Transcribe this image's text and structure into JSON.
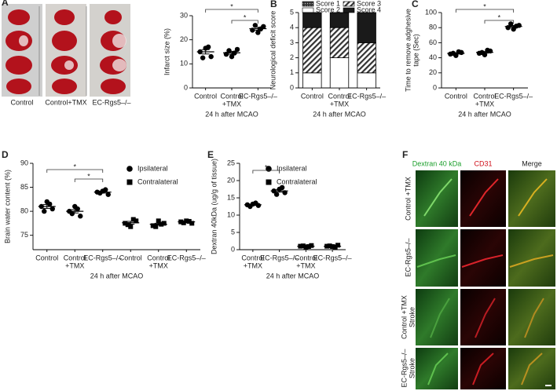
{
  "panel_labels": [
    "A",
    "B",
    "C",
    "D",
    "E",
    "F"
  ],
  "panel_a_images": {
    "captions": [
      "Control",
      "Control+TMX",
      "EC-Rgs5–/–"
    ]
  },
  "chart_data": [
    {
      "type": "dotplot",
      "ylabel": [
        "Infarct size (%)"
      ],
      "xlabel": "24 h after MCAO",
      "categories": [
        [
          "Control"
        ],
        [
          "Control",
          "+TMX"
        ],
        [
          "EC-Rgs5–/–"
        ]
      ],
      "ylim": [
        0,
        30
      ],
      "yticks": [
        0,
        10,
        20,
        30
      ],
      "series": [
        {
          "marker": "circle",
          "color": "#000000",
          "values": [
            [
              15,
              13,
              16.5,
              12.5,
              17
            ],
            [
              14,
              16,
              13,
              15.5,
              14.5
            ],
            [
              24,
              25.5,
              23,
              26,
              24.5
            ]
          ],
          "means": [
            15,
            14.6,
            24.6
          ],
          "errors": [
            0.9,
            0.6,
            0.6
          ]
        }
      ],
      "significance": [
        {
          "from": 0,
          "to": 2,
          "label": "*"
        },
        {
          "from": 1,
          "to": 2,
          "label": "*"
        }
      ]
    },
    {
      "type": "stacked_bar",
      "ylabel": [
        "Neurological deficit score"
      ],
      "xlabel": "24 h after MCAO",
      "categories": [
        [
          "Control"
        ],
        [
          "Control",
          "+TMX"
        ],
        [
          "EC-Rgs5–/–"
        ]
      ],
      "ylim": [
        0,
        5
      ],
      "yticks": [
        0,
        1,
        2,
        3,
        4,
        5
      ],
      "series": [
        {
          "name": "Score 1",
          "color": "#555555",
          "pattern": "dots",
          "values": [
            0,
            0,
            0
          ]
        },
        {
          "name": "Score 2",
          "color": "#ffffff",
          "values": [
            1,
            2,
            1
          ]
        },
        {
          "name": "Score 3",
          "color": "#444444",
          "pattern": "hatch",
          "values": [
            3,
            2,
            2
          ]
        },
        {
          "name": "Score 4",
          "color": "#1a1a1a",
          "values": [
            1,
            1,
            2
          ]
        }
      ]
    },
    {
      "type": "dotplot",
      "ylabel": [
        "Time to remove adghesive",
        "tape (Sec)"
      ],
      "xlabel": "24 h after MCAO",
      "categories": [
        [
          "Control"
        ],
        [
          "Control",
          "+TMX"
        ],
        [
          "EC-Rgs5–/–"
        ]
      ],
      "ylim": [
        0,
        100
      ],
      "yticks": [
        0,
        20,
        40,
        60,
        80,
        100
      ],
      "series": [
        {
          "marker": "circle",
          "color": "#000000",
          "values": [
            [
              45,
              47,
              43,
              46,
              48
            ],
            [
              46,
              49,
              44,
              47,
              50
            ],
            [
              80,
              83,
              78,
              85,
              82
            ]
          ],
          "means": [
            45.8,
            47.2,
            81.6
          ],
          "errors": [
            0.9,
            1.1,
            1.2
          ]
        }
      ],
      "significance": [
        {
          "from": 0,
          "to": 2,
          "label": "*"
        },
        {
          "from": 1,
          "to": 2,
          "label": "*"
        }
      ]
    },
    {
      "type": "dotplot",
      "ylabel": [
        "Brain water content (%)"
      ],
      "xlabel": "24 h after MCAO",
      "categories": [
        [
          "Control"
        ],
        [
          "Control",
          "+TMX"
        ],
        [
          "EC-Rgs5–/–"
        ],
        [
          "Control"
        ],
        [
          "Control",
          "+TMX"
        ],
        [
          "EC-Rgs5–/–"
        ]
      ],
      "ylim": [
        72,
        90
      ],
      "yticks": [
        75,
        80,
        85,
        90
      ],
      "series": [
        {
          "name": "Ipsilateral",
          "marker": "circle",
          "color": "#000000",
          "values": [
            [
              81,
              80.5,
              82,
              80,
              81.5
            ],
            [
              80,
              79,
              81,
              79.5,
              80.5
            ],
            [
              84,
              83.5,
              84.2,
              83.8,
              84.5
            ],
            null,
            null,
            null
          ],
          "means": [
            81,
            80,
            84,
            null,
            null,
            null
          ],
          "errors": [
            0.4,
            0.35,
            0.2,
            null,
            null,
            null
          ]
        },
        {
          "name": "Contralateral",
          "marker": "square",
          "color": "#000000",
          "values": [
            null,
            null,
            null,
            [
              77.5,
              78,
              76.8,
              77.2,
              78.3
            ],
            [
              77,
              77.5,
              78,
              76.8,
              77.3
            ],
            [
              77.8,
              77.5,
              78,
              77.6,
              77.9
            ]
          ],
          "means": [
            null,
            null,
            null,
            77.6,
            77.3,
            77.8
          ],
          "errors": [
            null,
            null,
            null,
            0.3,
            0.2,
            0.1
          ]
        }
      ],
      "significance": [
        {
          "from": 0,
          "to": 2,
          "label": "*"
        },
        {
          "from": 1,
          "to": 2,
          "label": "*"
        }
      ]
    },
    {
      "type": "dotplot",
      "ylabel": [
        "Dextran 40kDa (ug/g of tissue)"
      ],
      "xlabel": "24 h after MCAO",
      "categories": [
        [
          "Control",
          "+TMX"
        ],
        [
          "EC-Rgs5–/–"
        ],
        [
          "Control",
          "+TMX"
        ],
        [
          "EC-Rgs5–/–"
        ]
      ],
      "ylim": [
        0,
        25
      ],
      "yticks": [
        0,
        5,
        10,
        15,
        20,
        25
      ],
      "series": [
        {
          "name": "Ipsilateral",
          "marker": "circle",
          "color": "#000000",
          "values": [
            [
              13,
              12.8,
              13.2,
              12.5,
              13.5
            ],
            [
              17,
              16.5,
              17.5,
              16,
              18
            ],
            null,
            null
          ],
          "means": [
            13,
            17,
            null,
            null
          ],
          "errors": [
            0.2,
            0.35,
            null,
            null
          ]
        },
        {
          "name": "Contralateral",
          "marker": "square",
          "color": "#000000",
          "values": [
            null,
            null,
            [
              1,
              1.2,
              0.8,
              1.1,
              0.9
            ],
            [
              1,
              1.3,
              0.9,
              1.1,
              0.8
            ]
          ],
          "means": [
            null,
            null,
            1,
            1
          ],
          "errors": [
            null,
            null,
            0.05,
            0.08
          ]
        }
      ],
      "significance": [
        {
          "from": 0,
          "to": 1,
          "label": "*"
        }
      ]
    }
  ],
  "panel_f": {
    "columns": [
      "Dextran 40 kDa",
      "CD31",
      "Merge"
    ],
    "rows": [
      [
        "Control +TMX"
      ],
      [
        "EC-Rgs5–/–"
      ],
      [
        "Control +TMX",
        "Stroke"
      ],
      [
        "EC-Rgs5–/–",
        "Stroke"
      ]
    ]
  }
}
